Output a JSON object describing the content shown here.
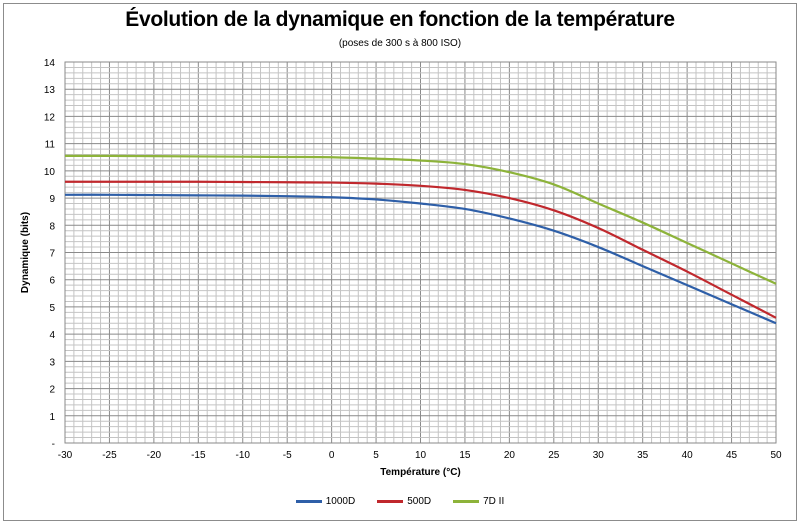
{
  "chart_data": {
    "type": "line",
    "title": "Évolution de la dynamique en fonction de la température",
    "subtitle": "(poses de 300 s à 800 ISO)",
    "xlabel": "Température (°C)",
    "ylabel": "Dynamique (bits)",
    "xlim": [
      -30,
      50
    ],
    "ylim": [
      0,
      14
    ],
    "x_ticks": [
      "-30",
      "-25",
      "-20",
      "-15",
      "-10",
      "-5",
      "0",
      "5",
      "10",
      "15",
      "20",
      "25",
      "30",
      "35",
      "40",
      "45",
      "50"
    ],
    "y_ticks": [
      "-",
      "1",
      "2",
      "3",
      "4",
      "5",
      "6",
      "7",
      "8",
      "9",
      "10",
      "11",
      "12",
      "13",
      "14"
    ],
    "grid": true,
    "legend_position": "bottom",
    "x": [
      -30,
      -25,
      -20,
      -15,
      -10,
      -5,
      0,
      5,
      10,
      15,
      20,
      25,
      30,
      35,
      40,
      45,
      50
    ],
    "series": [
      {
        "name": "1000D",
        "color": "#2e5fa8",
        "values": [
          9.12,
          9.12,
          9.11,
          9.1,
          9.09,
          9.07,
          9.03,
          8.95,
          8.8,
          8.6,
          8.25,
          7.8,
          7.2,
          6.5,
          5.8,
          5.1,
          4.4
        ]
      },
      {
        "name": "500D",
        "color": "#c0282d",
        "values": [
          9.6,
          9.6,
          9.6,
          9.6,
          9.59,
          9.58,
          9.57,
          9.53,
          9.45,
          9.3,
          9.0,
          8.55,
          7.9,
          7.1,
          6.3,
          5.45,
          4.6
        ]
      },
      {
        "name": "7D II",
        "color": "#8db33a",
        "values": [
          10.55,
          10.55,
          10.54,
          10.53,
          10.52,
          10.51,
          10.5,
          10.45,
          10.38,
          10.25,
          9.95,
          9.5,
          8.8,
          8.1,
          7.35,
          6.6,
          5.85
        ]
      }
    ]
  }
}
